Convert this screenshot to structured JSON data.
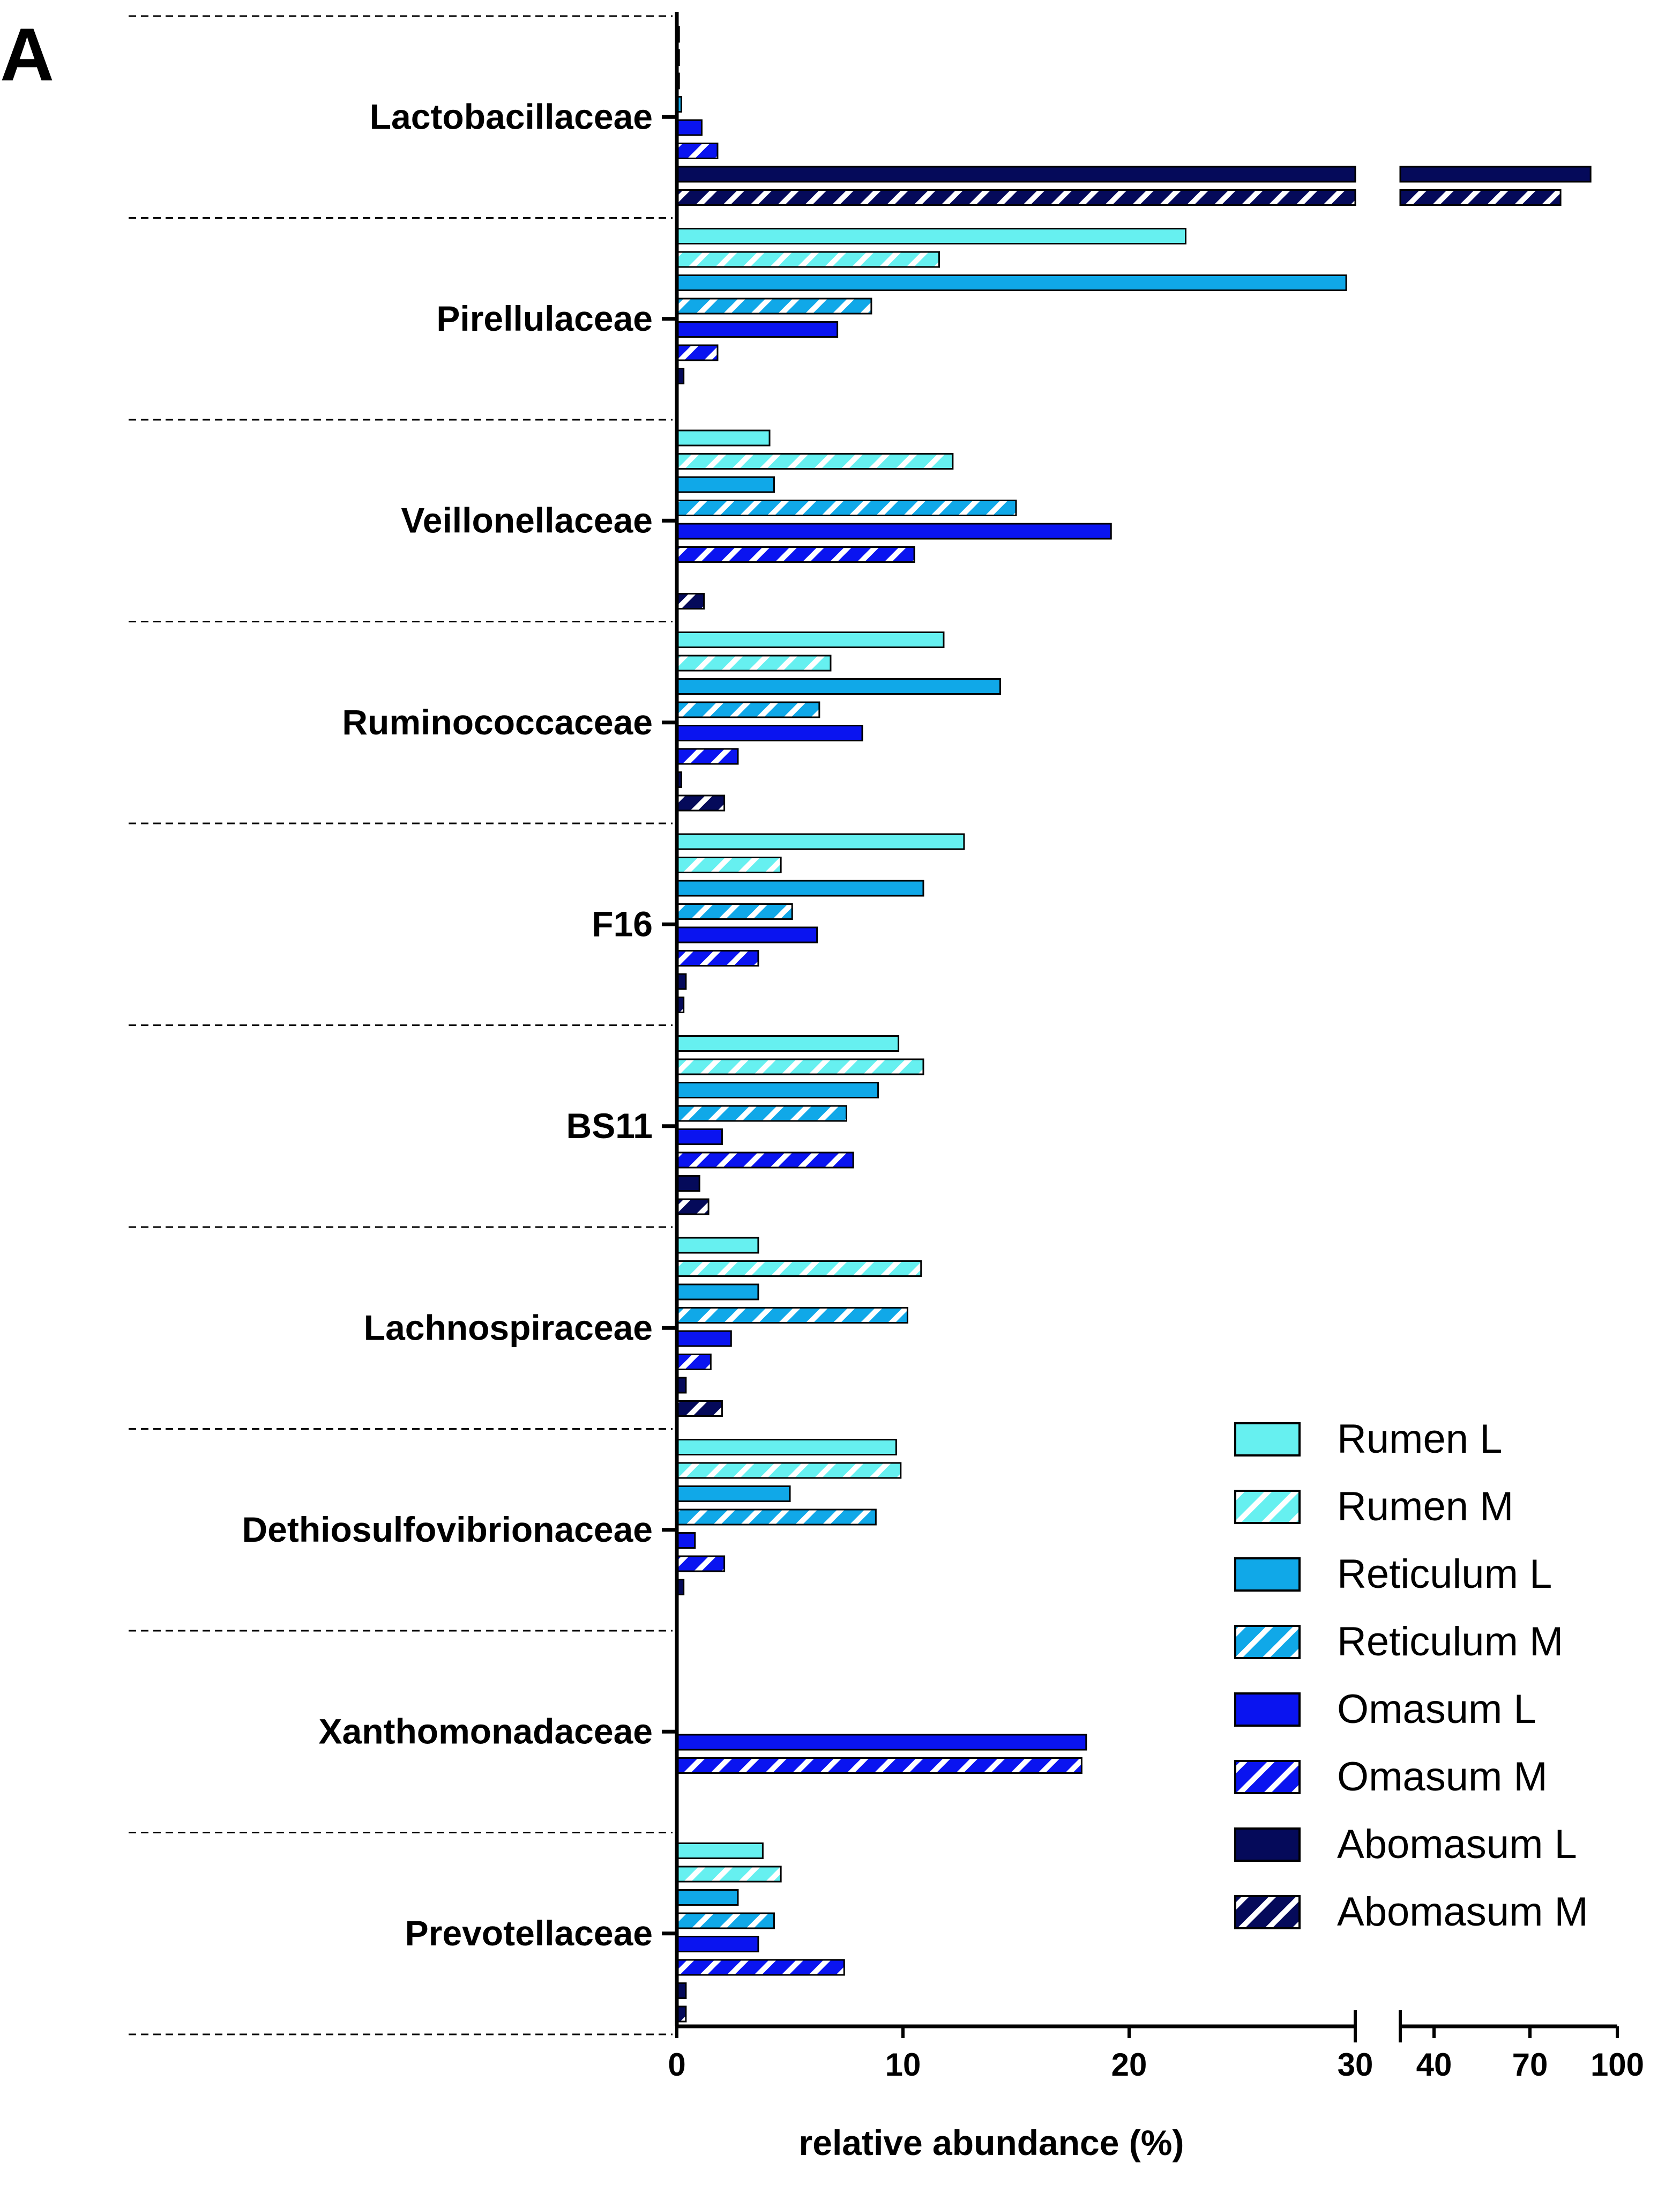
{
  "panel_label": "A",
  "chart_data": {
    "type": "bar",
    "orientation": "horizontal",
    "title": "",
    "xlabel": "relative abundance (%)",
    "ylabel": "",
    "x_axis": {
      "segments": [
        {
          "range": [
            0,
            30
          ],
          "ticks": [
            0,
            10,
            20,
            30
          ]
        },
        {
          "range": [
            35,
            100
          ],
          "ticks": [
            40,
            70,
            100
          ],
          "note": "broken axis"
        }
      ],
      "tick_labels": [
        "0",
        "10",
        "20",
        "30",
        "40",
        "70",
        "100"
      ]
    },
    "categories": [
      "Lactobacillaceae",
      "Pirellulaceae",
      "Veillonellaceae",
      "Ruminococcaceae",
      "F16",
      "BS11",
      "Lachnospiraceae",
      "Dethiosulfovibrionaceae",
      "Xanthomonadaceae",
      "Prevotellaceae"
    ],
    "series": [
      {
        "name": "Rumen L",
        "color": "#66F0F0",
        "pattern": "solid",
        "values": [
          0.1,
          22.5,
          4.1,
          11.8,
          12.7,
          9.8,
          3.6,
          9.7,
          0,
          3.8
        ]
      },
      {
        "name": "Rumen M",
        "color": "#66F0F0",
        "pattern": "hatched",
        "values": [
          0.1,
          11.6,
          12.2,
          6.8,
          4.6,
          10.9,
          10.8,
          9.9,
          0,
          4.6
        ]
      },
      {
        "name": "Reticulum L",
        "color": "#10A8E8",
        "pattern": "solid",
        "values": [
          0.1,
          29.6,
          4.3,
          14.3,
          10.9,
          8.9,
          3.6,
          5.0,
          0,
          2.7
        ]
      },
      {
        "name": "Reticulum M",
        "color": "#10A8E8",
        "pattern": "hatched",
        "values": [
          0.2,
          8.6,
          15.0,
          6.3,
          5.1,
          7.5,
          10.2,
          8.8,
          0,
          4.3
        ]
      },
      {
        "name": "Omasum L",
        "color": "#0A14F0",
        "pattern": "solid",
        "values": [
          1.1,
          7.1,
          19.2,
          8.2,
          6.2,
          2.0,
          2.4,
          0.8,
          18.1,
          3.6
        ]
      },
      {
        "name": "Omasum M",
        "color": "#0A14F0",
        "pattern": "hatched",
        "values": [
          1.8,
          1.8,
          10.5,
          2.7,
          3.6,
          7.8,
          1.5,
          2.1,
          17.9,
          7.4
        ]
      },
      {
        "name": "Abomasum L",
        "color": "#050A5A",
        "pattern": "solid",
        "values": [
          92,
          0.3,
          0,
          0.2,
          0.4,
          1.0,
          0.4,
          0.3,
          0,
          0.4
        ]
      },
      {
        "name": "Abomasum M",
        "color": "#050A5A",
        "pattern": "hatched",
        "values": [
          83,
          0,
          1.2,
          2.1,
          0.3,
          1.4,
          2.0,
          0,
          0,
          0.4
        ]
      }
    ],
    "legend": {
      "position": "bottom-right",
      "entries": [
        "Rumen L",
        "Rumen M",
        "Reticulum L",
        "Reticulum M",
        "Omasum L",
        "Omasum M",
        "Abomasum L",
        "Abomasum M"
      ]
    },
    "grid": false
  }
}
